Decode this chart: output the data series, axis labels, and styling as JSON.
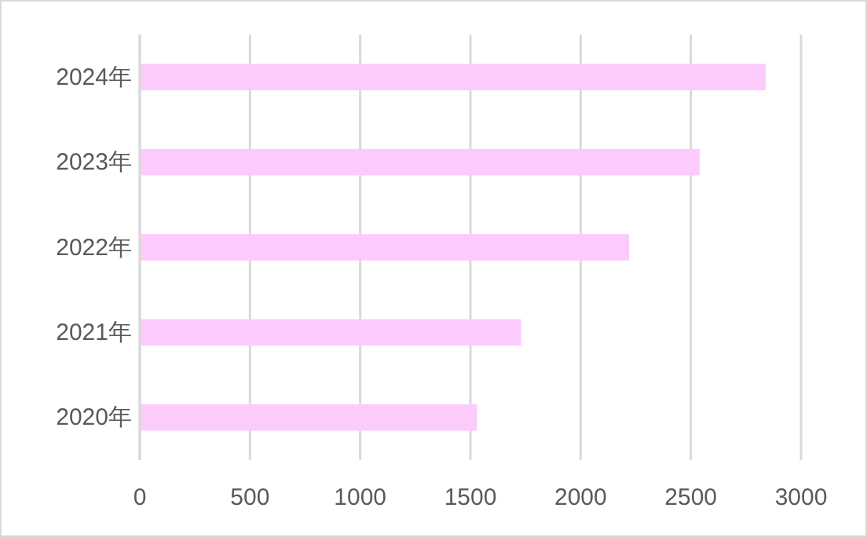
{
  "chart_data": {
    "type": "bar",
    "orientation": "horizontal",
    "categories": [
      "2024年",
      "2023年",
      "2022年",
      "2021年",
      "2020年"
    ],
    "values": [
      2840,
      2540,
      2220,
      1730,
      1530
    ],
    "color": "#fccbfc",
    "xlim": [
      0,
      3000
    ],
    "xticks": [
      0,
      500,
      1000,
      1500,
      2000,
      2500,
      3000
    ],
    "grid": "x"
  }
}
